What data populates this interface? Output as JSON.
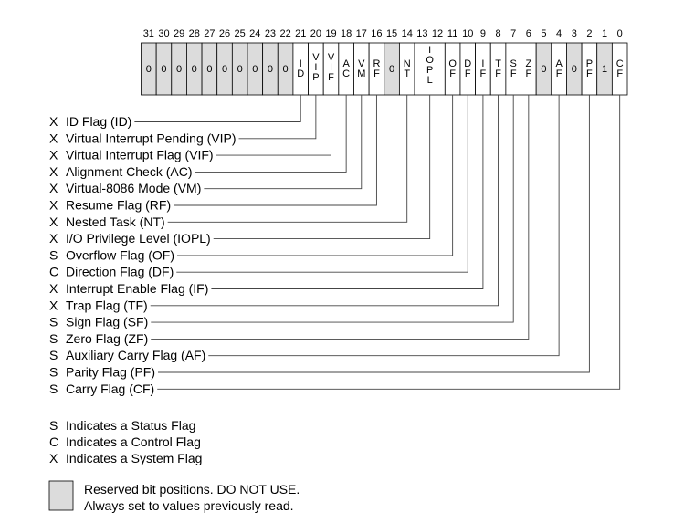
{
  "register": {
    "bit_numbers": [
      "31",
      "30",
      "29",
      "28",
      "27",
      "26",
      "25",
      "24",
      "23",
      "22",
      "21",
      "20",
      "19",
      "18",
      "17",
      "16",
      "15",
      "14",
      "13",
      "12",
      "11",
      "10",
      "9",
      "8",
      "7",
      "6",
      "5",
      "4",
      "3",
      "2",
      "1",
      "0"
    ],
    "cells": [
      {
        "start": 31,
        "end": 31,
        "lines": [
          "0"
        ],
        "reserved": true
      },
      {
        "start": 30,
        "end": 30,
        "lines": [
          "0"
        ],
        "reserved": true
      },
      {
        "start": 29,
        "end": 29,
        "lines": [
          "0"
        ],
        "reserved": true
      },
      {
        "start": 28,
        "end": 28,
        "lines": [
          "0"
        ],
        "reserved": true
      },
      {
        "start": 27,
        "end": 27,
        "lines": [
          "0"
        ],
        "reserved": true
      },
      {
        "start": 26,
        "end": 26,
        "lines": [
          "0"
        ],
        "reserved": true
      },
      {
        "start": 25,
        "end": 25,
        "lines": [
          "0"
        ],
        "reserved": true
      },
      {
        "start": 24,
        "end": 24,
        "lines": [
          "0"
        ],
        "reserved": true
      },
      {
        "start": 23,
        "end": 23,
        "lines": [
          "0"
        ],
        "reserved": true
      },
      {
        "start": 22,
        "end": 22,
        "lines": [
          "0"
        ],
        "reserved": true
      },
      {
        "start": 21,
        "end": 21,
        "lines": [
          "I",
          "D"
        ],
        "reserved": false
      },
      {
        "start": 20,
        "end": 20,
        "lines": [
          "V",
          "I",
          "P"
        ],
        "reserved": false
      },
      {
        "start": 19,
        "end": 19,
        "lines": [
          "V",
          "I",
          "F"
        ],
        "reserved": false
      },
      {
        "start": 18,
        "end": 18,
        "lines": [
          "A",
          "C"
        ],
        "reserved": false
      },
      {
        "start": 17,
        "end": 17,
        "lines": [
          "V",
          "M"
        ],
        "reserved": false
      },
      {
        "start": 16,
        "end": 16,
        "lines": [
          "R",
          "F"
        ],
        "reserved": false
      },
      {
        "start": 15,
        "end": 15,
        "lines": [
          "0"
        ],
        "reserved": true
      },
      {
        "start": 14,
        "end": 14,
        "lines": [
          "N",
          "T"
        ],
        "reserved": false
      },
      {
        "start": 13,
        "end": 12,
        "lines": [
          "I",
          "O",
          "P",
          "L"
        ],
        "reserved": false
      },
      {
        "start": 11,
        "end": 11,
        "lines": [
          "O",
          "F"
        ],
        "reserved": false
      },
      {
        "start": 10,
        "end": 10,
        "lines": [
          "D",
          "F"
        ],
        "reserved": false
      },
      {
        "start": 9,
        "end": 9,
        "lines": [
          "I",
          "F"
        ],
        "reserved": false
      },
      {
        "start": 8,
        "end": 8,
        "lines": [
          "T",
          "F"
        ],
        "reserved": false
      },
      {
        "start": 7,
        "end": 7,
        "lines": [
          "S",
          "F"
        ],
        "reserved": false
      },
      {
        "start": 6,
        "end": 6,
        "lines": [
          "Z",
          "F"
        ],
        "reserved": false
      },
      {
        "start": 5,
        "end": 5,
        "lines": [
          "0"
        ],
        "reserved": true
      },
      {
        "start": 4,
        "end": 4,
        "lines": [
          "A",
          "F"
        ],
        "reserved": false
      },
      {
        "start": 3,
        "end": 3,
        "lines": [
          "0"
        ],
        "reserved": true
      },
      {
        "start": 2,
        "end": 2,
        "lines": [
          "P",
          "F"
        ],
        "reserved": false
      },
      {
        "start": 1,
        "end": 1,
        "lines": [
          "1"
        ],
        "reserved": true
      },
      {
        "start": 0,
        "end": 0,
        "lines": [
          "C",
          "F"
        ],
        "reserved": false
      }
    ]
  },
  "flags": [
    {
      "type": "X",
      "name": "ID Flag (ID)",
      "bit": 21
    },
    {
      "type": "X",
      "name": "Virtual Interrupt Pending (VIP)",
      "bit": 20
    },
    {
      "type": "X",
      "name": "Virtual Interrupt Flag (VIF)",
      "bit": 19
    },
    {
      "type": "X",
      "name": "Alignment Check (AC)",
      "bit": 18
    },
    {
      "type": "X",
      "name": "Virtual-8086 Mode (VM)",
      "bit": 17
    },
    {
      "type": "X",
      "name": "Resume Flag (RF)",
      "bit": 16
    },
    {
      "type": "X",
      "name": "Nested Task (NT)",
      "bit": 14
    },
    {
      "type": "X",
      "name": "I/O Privilege Level (IOPL)",
      "bit": 12.5
    },
    {
      "type": "S",
      "name": "Overflow Flag (OF)",
      "bit": 11
    },
    {
      "type": "C",
      "name": "Direction Flag (DF)",
      "bit": 10
    },
    {
      "type": "X",
      "name": "Interrupt Enable Flag (IF)",
      "bit": 9
    },
    {
      "type": "X",
      "name": "Trap Flag (TF)",
      "bit": 8
    },
    {
      "type": "S",
      "name": "Sign Flag (SF)",
      "bit": 7
    },
    {
      "type": "S",
      "name": "Zero Flag (ZF)",
      "bit": 6
    },
    {
      "type": "S",
      "name": "Auxiliary Carry Flag (AF)",
      "bit": 4
    },
    {
      "type": "S",
      "name": "Parity Flag (PF)",
      "bit": 2
    },
    {
      "type": "S",
      "name": "Carry Flag (CF)",
      "bit": 0
    }
  ],
  "legend": [
    {
      "type": "S",
      "text": "Indicates a Status Flag"
    },
    {
      "type": "C",
      "text": "Indicates a Control Flag"
    },
    {
      "type": "X",
      "text": "Indicates a System Flag"
    }
  ],
  "reserved_note": {
    "line1": "Reserved bit positions. DO NOT USE.",
    "line2": "Always set to values previously read."
  },
  "colors": {
    "reserved_fill": "#dcdcdc",
    "normal_fill": "#ffffff"
  }
}
